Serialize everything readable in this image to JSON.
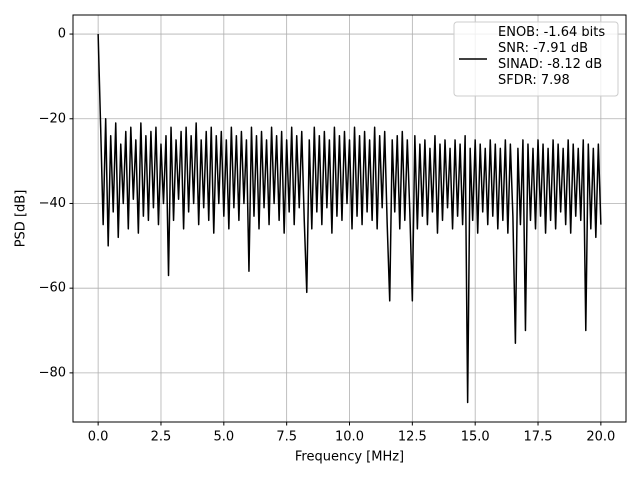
{
  "chart_data": {
    "type": "line",
    "xlabel": "Frequency [MHz]",
    "ylabel": "PSD [dB]",
    "grid": true,
    "legend_loc": "upper right",
    "xlim": [
      -1,
      21
    ],
    "ylim": [
      -91.6,
      4.5
    ],
    "xticks": [
      {
        "value": 0,
        "label": "0.0"
      },
      2.5,
      {
        "value": 5,
        "label": "5.0"
      },
      7.5,
      {
        "value": 10,
        "label": "10.0"
      },
      12.5,
      {
        "value": 15,
        "label": "15.0"
      },
      17.5,
      {
        "value": 20,
        "label": "20.0"
      }
    ],
    "yticks": [
      {
        "value": -80,
        "label": "−80"
      },
      {
        "value": -60,
        "label": "−60"
      },
      {
        "value": -40,
        "label": "−40"
      },
      {
        "value": -20,
        "label": "−20"
      },
      0
    ],
    "x": [
      0,
      0.1,
      0.2,
      0.3,
      0.4,
      0.5,
      0.6,
      0.7,
      0.8,
      0.9,
      1,
      1.1,
      1.2,
      1.3,
      1.4,
      1.5,
      1.6,
      1.7,
      1.8,
      1.9,
      2,
      2.1,
      2.2,
      2.3,
      2.4,
      2.5,
      2.6,
      2.7,
      2.8,
      2.9,
      3,
      3.1,
      3.2,
      3.3,
      3.4,
      3.5,
      3.6,
      3.7,
      3.8,
      3.9,
      4,
      4.1,
      4.2,
      4.3,
      4.4,
      4.5,
      4.6,
      4.7,
      4.8,
      4.9,
      5,
      5.1,
      5.2,
      5.3,
      5.4,
      5.5,
      5.6,
      5.7,
      5.8,
      5.9,
      6,
      6.1,
      6.2,
      6.3,
      6.4,
      6.5,
      6.6,
      6.7,
      6.8,
      6.9,
      7,
      7.1,
      7.2,
      7.3,
      7.4,
      7.5,
      7.6,
      7.7,
      7.8,
      7.9,
      8,
      8.1,
      8.2,
      8.3,
      8.4,
      8.5,
      8.6,
      8.7,
      8.8,
      8.9,
      9,
      9.1,
      9.2,
      9.3,
      9.4,
      9.5,
      9.6,
      9.7,
      9.8,
      9.9,
      10,
      10.1,
      10.2,
      10.3,
      10.4,
      10.5,
      10.6,
      10.7,
      10.8,
      10.9,
      11,
      11.1,
      11.2,
      11.3,
      11.4,
      11.5,
      11.6,
      11.7,
      11.8,
      11.9,
      12,
      12.1,
      12.2,
      12.3,
      12.4,
      12.5,
      12.6,
      12.7,
      12.8,
      12.9,
      13,
      13.1,
      13.2,
      13.3,
      13.4,
      13.5,
      13.6,
      13.7,
      13.8,
      13.9,
      14,
      14.1,
      14.2,
      14.3,
      14.4,
      14.5,
      14.6,
      14.7,
      14.8,
      14.9,
      15,
      15.1,
      15.2,
      15.3,
      15.4,
      15.5,
      15.6,
      15.7,
      15.8,
      15.9,
      16,
      16.1,
      16.2,
      16.3,
      16.4,
      16.5,
      16.6,
      16.7,
      16.8,
      16.9,
      17,
      17.1,
      17.2,
      17.3,
      17.4,
      17.5,
      17.6,
      17.7,
      17.8,
      17.9,
      18,
      18.1,
      18.2,
      18.3,
      18.4,
      18.5,
      18.6,
      18.7,
      18.8,
      18.9,
      19,
      19.1,
      19.2,
      19.3,
      19.4,
      19.5,
      19.6,
      19.7,
      19.8,
      19.9,
      20
    ],
    "series": [
      {
        "name": "ENOB: -1.64 bits\nSNR: -7.91 dB\nSINAD: -8.12 dB\nSFDR: 7.98",
        "color": "#000000",
        "values": [
          0,
          -22,
          -45,
          -20,
          -50,
          -24,
          -42,
          -21,
          -48,
          -26,
          -40,
          -23,
          -46,
          -22,
          -39,
          -25,
          -47,
          -21,
          -43,
          -24,
          -44,
          -23,
          -41,
          -22,
          -45,
          -26,
          -40,
          -24,
          -57,
          -22,
          -44,
          -25,
          -39,
          -23,
          -46,
          -22,
          -42,
          -24,
          -40,
          -21,
          -45,
          -25,
          -41,
          -23,
          -44,
          -22,
          -47,
          -24,
          -40,
          -23,
          -43,
          -25,
          -46,
          -22,
          -41,
          -24,
          -44,
          -23,
          -40,
          -25,
          -56,
          -22,
          -43,
          -24,
          -46,
          -23,
          -41,
          -25,
          -45,
          -22,
          -40,
          -24,
          -44,
          -23,
          -47,
          -25,
          -42,
          -22,
          -45,
          -24,
          -41,
          -23,
          -44,
          -61,
          -25,
          -46,
          -22,
          -42,
          -24,
          -45,
          -23,
          -41,
          -25,
          -47,
          -22,
          -43,
          -24,
          -44,
          -23,
          -40,
          -25,
          -46,
          -22,
          -43,
          -24,
          -45,
          -23,
          -42,
          -25,
          -44,
          -22,
          -46,
          -24,
          -41,
          -23,
          -45,
          -63,
          -25,
          -42,
          -24,
          -46,
          -23,
          -44,
          -25,
          -42,
          -63,
          -24,
          -46,
          -26,
          -43,
          -25,
          -45,
          -27,
          -42,
          -24,
          -47,
          -26,
          -44,
          -25,
          -41,
          -27,
          -46,
          -25,
          -43,
          -26,
          -45,
          -24,
          -87,
          -27,
          -44,
          -25,
          -47,
          -26,
          -42,
          -27,
          -45,
          -25,
          -43,
          -26,
          -46,
          -27,
          -44,
          -25,
          -47,
          -26,
          -43,
          -73,
          -27,
          -45,
          -25,
          -70,
          -26,
          -44,
          -27,
          -46,
          -25,
          -43,
          -26,
          -47,
          -27,
          -44,
          -25,
          -46,
          -26,
          -42,
          -27,
          -45,
          -25,
          -47,
          -26,
          -43,
          -27,
          -44,
          -25,
          -70,
          -26,
          -46,
          -27,
          -48,
          -26,
          -45
        ]
      }
    ]
  }
}
